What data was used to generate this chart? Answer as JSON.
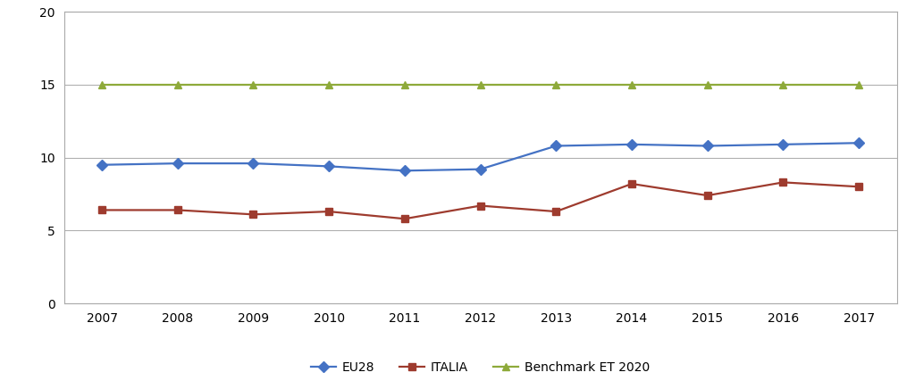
{
  "years": [
    2007,
    2008,
    2009,
    2010,
    2011,
    2012,
    2013,
    2014,
    2015,
    2016,
    2017
  ],
  "eu28": [
    9.5,
    9.6,
    9.6,
    9.4,
    9.1,
    9.2,
    10.8,
    10.9,
    10.8,
    10.9,
    11.0
  ],
  "italia": [
    6.4,
    6.4,
    6.1,
    6.3,
    5.8,
    6.7,
    6.3,
    8.2,
    7.4,
    8.3,
    8.0
  ],
  "benchmark": [
    15.0,
    15.0,
    15.0,
    15.0,
    15.0,
    15.0,
    15.0,
    15.0,
    15.0,
    15.0,
    15.0
  ],
  "eu28_color": "#4472C4",
  "italia_color": "#9E3B2E",
  "benchmark_color": "#8EAA3A",
  "ylim": [
    0,
    20
  ],
  "yticks": [
    0,
    5,
    10,
    15,
    20
  ],
  "legend_eu28": "EU28",
  "legend_italia": "ITALIA",
  "legend_benchmark": "Benchmark ET 2020",
  "background_color": "#ffffff",
  "plot_bg_color": "#ffffff",
  "grid_color": "#b0b0b0",
  "spine_color": "#aaaaaa",
  "linewidth": 1.6,
  "markersize": 6,
  "tick_fontsize": 10,
  "legend_fontsize": 10
}
